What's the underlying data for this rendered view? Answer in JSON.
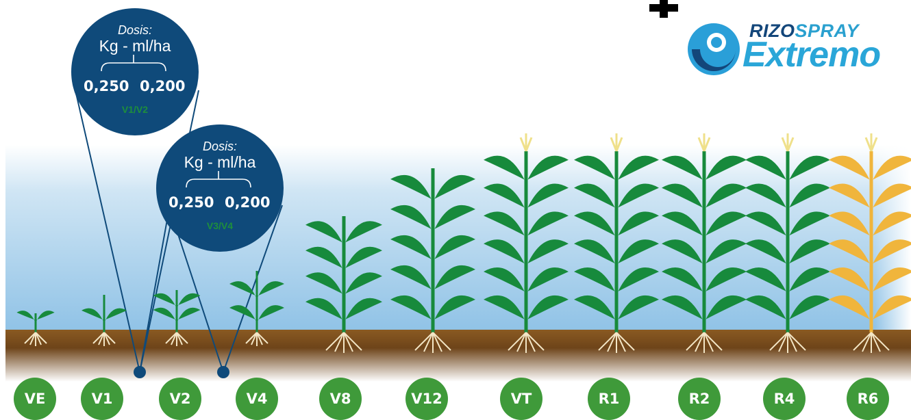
{
  "logo": {
    "brand_rizo": "RIZO",
    "brand_spray": "SPRAY",
    "product": "Extremo"
  },
  "dose_callouts": [
    {
      "title": "Dosis:",
      "unit": "Kg - ml/ha",
      "value_kg": "0,250",
      "value_ml": "0,200",
      "stage": "V1/V2"
    },
    {
      "title": "Dosis:",
      "unit": "Kg - ml/ha",
      "value_kg": "0,250",
      "value_ml": "0,200",
      "stage": "V3/V4"
    }
  ],
  "stages": [
    "VE",
    "V1",
    "V2",
    "V4",
    "V8",
    "V12",
    "VT",
    "R1",
    "R2",
    "R4",
    "R6"
  ],
  "colors": {
    "bubble": "#0f4a7a",
    "stage_badge": "#3f9a3a",
    "plant_green": "#178a3c",
    "plant_dry": "#f0b53c",
    "soil": "#7a4d1e",
    "sky": "#9cc9e8"
  }
}
